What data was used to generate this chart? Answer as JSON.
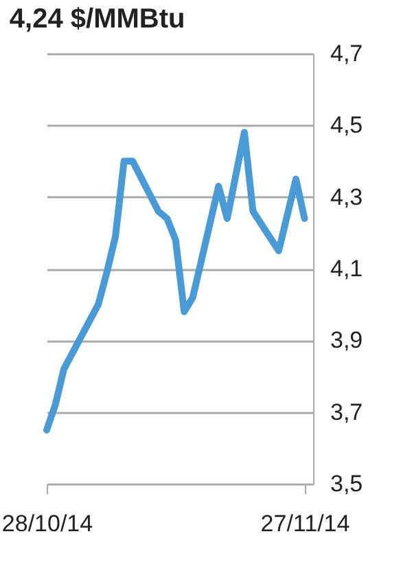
{
  "chart_data": {
    "type": "line",
    "title": "4,24 $/MMBtu",
    "x": [
      "2014-10-28",
      "2014-10-29",
      "2014-10-30",
      "2014-11-03",
      "2014-11-04",
      "2014-11-05",
      "2014-11-06",
      "2014-11-07",
      "2014-11-10",
      "2014-11-11",
      "2014-11-12",
      "2014-11-13",
      "2014-11-14",
      "2014-11-17",
      "2014-11-18",
      "2014-11-20",
      "2014-11-21",
      "2014-11-24",
      "2014-11-26",
      "2014-11-27"
    ],
    "series": [
      {
        "color": "#4a9ad6",
        "values": [
          3.65,
          3.72,
          3.82,
          4.0,
          4.09,
          4.19,
          4.4,
          4.4,
          4.26,
          4.24,
          4.18,
          3.98,
          4.02,
          4.33,
          4.24,
          4.48,
          4.26,
          4.15,
          4.35,
          4.24
        ]
      }
    ],
    "xlim": [
      "2014-10-28",
      "2014-11-28"
    ],
    "xticks": [
      {
        "value": "2014-10-28",
        "label": "28/10/14"
      },
      {
        "value": "2014-11-27",
        "label": "27/11/14"
      }
    ],
    "ylim": [
      3.5,
      4.7
    ],
    "yticks": [
      {
        "value": 3.5,
        "label": "3,5"
      },
      {
        "value": 3.7,
        "label": "3,7"
      },
      {
        "value": 3.9,
        "label": "3,9"
      },
      {
        "value": 4.1,
        "label": "4,1"
      },
      {
        "value": 4.3,
        "label": "4,3"
      },
      {
        "value": 4.5,
        "label": "4,5"
      },
      {
        "value": 4.7,
        "label": "4,7"
      }
    ],
    "grid": "y",
    "marker": "none",
    "line_style": "solid"
  }
}
